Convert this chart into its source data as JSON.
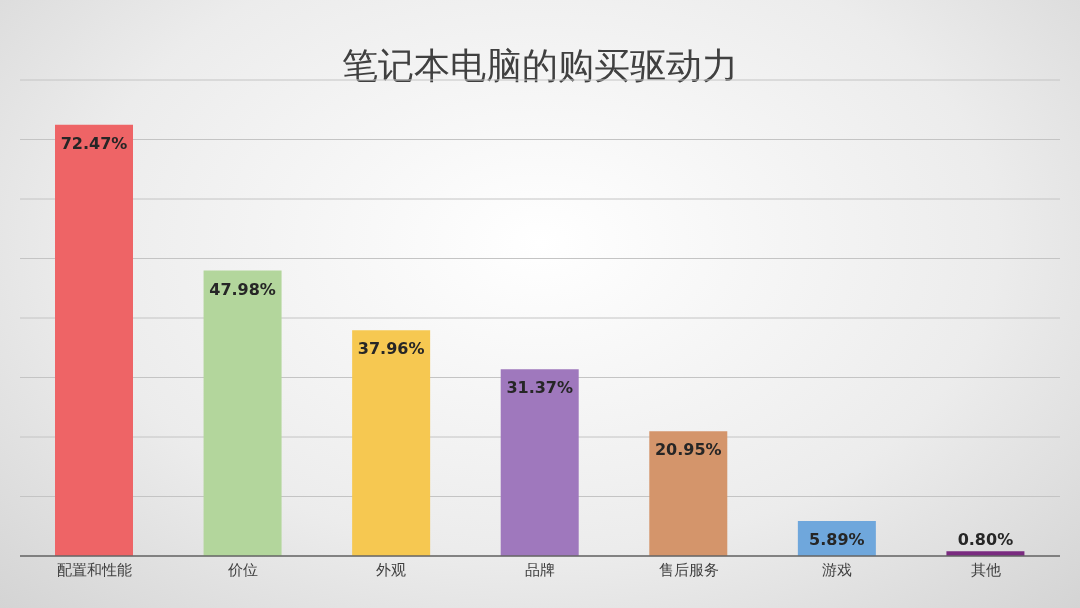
{
  "chart_data": {
    "type": "bar",
    "title": "笔记本电脑的购买驱动力",
    "categories": [
      "配置和性能",
      "价位",
      "外观",
      "品牌",
      "售后服务",
      "游戏",
      "其他"
    ],
    "values": [
      72.47,
      47.98,
      37.96,
      31.37,
      20.95,
      5.89,
      0.8
    ],
    "value_labels": [
      "72.47%",
      "47.98%",
      "37.96%",
      "31.37%",
      "20.95%",
      "5.89%",
      "0.80%"
    ],
    "colors": [
      "#ee6466",
      "#b3d69c",
      "#f6c851",
      "#9f78bd",
      "#d4956b",
      "#6fa7dc",
      "#7a2b80"
    ],
    "ylim": [
      0,
      80
    ],
    "tick_labels": "x",
    "grid": "y"
  }
}
